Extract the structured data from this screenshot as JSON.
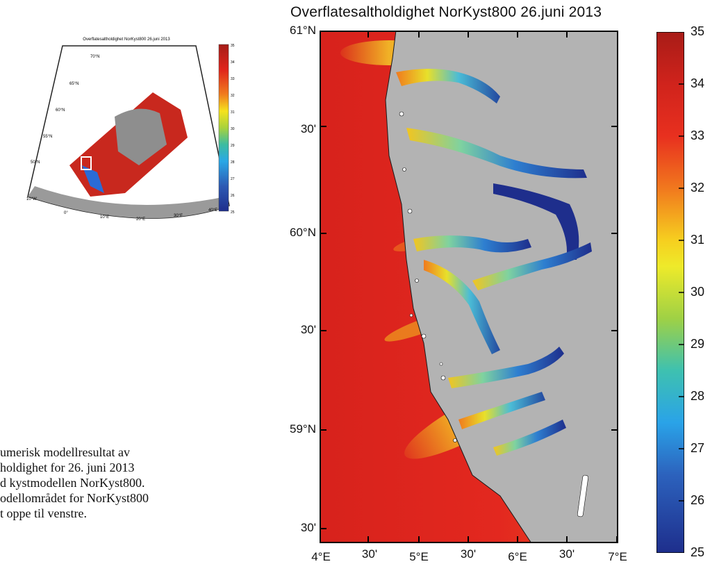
{
  "title": "Overflatesaltholdighet NorKyst800 26.juni 2013",
  "inset": {
    "title": "Overflatesaltholdighet NorKyst800 26.juni 2013",
    "colorbar_ticks": [
      "35",
      "34",
      "33",
      "32",
      "31",
      "30",
      "29",
      "28",
      "27",
      "26",
      "25"
    ],
    "lat_labels": [
      "70°N",
      "65°N",
      "60°N",
      "55°N",
      "50°N"
    ],
    "lon_labels": [
      "0°",
      "10°E",
      "20°E",
      "30°E",
      "40°E",
      "10°W"
    ]
  },
  "map": {
    "lat_labels": [
      "61°N",
      "30'",
      "60°N",
      "30'",
      "59°N",
      "30'"
    ],
    "lon_labels": [
      "4°E",
      "30'",
      "5°E",
      "30'",
      "6°E",
      "30'",
      "7°E"
    ],
    "colors": {
      "sea_high": "#e0241c",
      "land": "#b3b3b3",
      "fjord_low": "#1e2e8c"
    }
  },
  "colorbar": {
    "labels": [
      "35",
      "34",
      "33",
      "32",
      "31",
      "30",
      "29",
      "28",
      "27",
      "26",
      "25"
    ],
    "min": 25,
    "max": 35
  },
  "caption": [
    "umerisk modellresultat av",
    "holdighet for 26. juni 2013",
    "d kystmodellen NorKyst800.",
    "odellområdet for NorKyst800",
    "t oppe til venstre."
  ]
}
